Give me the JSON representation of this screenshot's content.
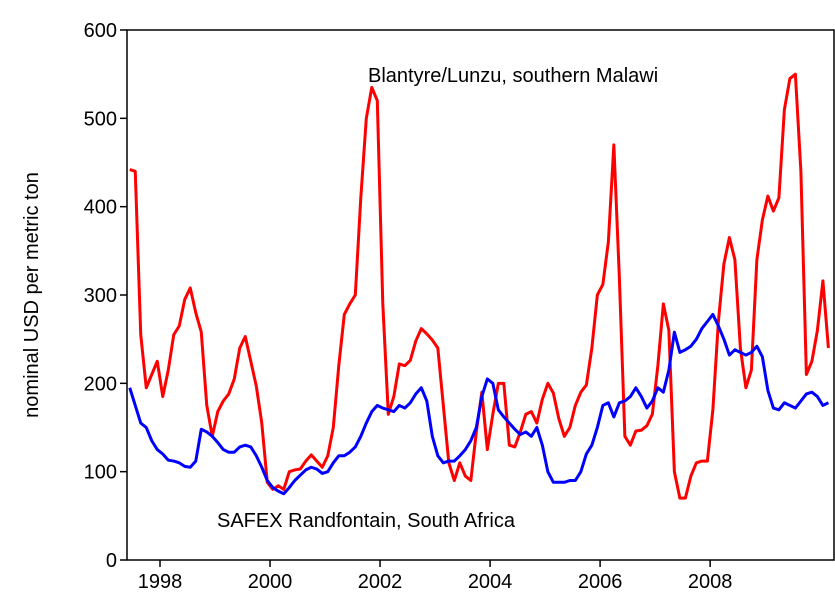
{
  "chart_data": {
    "type": "line",
    "y_label": "nominal USD per metric ton",
    "x": [
      1997.45,
      1997.55,
      1997.65,
      1997.75,
      1997.85,
      1997.95,
      1998.05,
      1998.15,
      1998.25,
      1998.35,
      1998.45,
      1998.55,
      1998.65,
      1998.75,
      1998.85,
      1998.95,
      1999.05,
      1999.15,
      1999.25,
      1999.35,
      1999.45,
      1999.55,
      1999.65,
      1999.75,
      1999.85,
      1999.95,
      2000.05,
      2000.15,
      2000.25,
      2000.35,
      2000.45,
      2000.55,
      2000.65,
      2000.75,
      2000.85,
      2000.95,
      2001.05,
      2001.15,
      2001.25,
      2001.35,
      2001.45,
      2001.55,
      2001.65,
      2001.75,
      2001.85,
      2001.95,
      2002.05,
      2002.15,
      2002.25,
      2002.35,
      2002.45,
      2002.55,
      2002.65,
      2002.75,
      2002.85,
      2002.95,
      2003.05,
      2003.15,
      2003.25,
      2003.35,
      2003.45,
      2003.55,
      2003.65,
      2003.75,
      2003.85,
      2003.95,
      2004.05,
      2004.15,
      2004.25,
      2004.35,
      2004.45,
      2004.55,
      2004.65,
      2004.75,
      2004.85,
      2004.95,
      2005.05,
      2005.15,
      2005.25,
      2005.35,
      2005.45,
      2005.55,
      2005.65,
      2005.75,
      2005.85,
      2005.95,
      2006.05,
      2006.15,
      2006.25,
      2006.35,
      2006.45,
      2006.55,
      2006.65,
      2006.75,
      2006.85,
      2006.95,
      2007.05,
      2007.15,
      2007.25,
      2007.35,
      2007.45,
      2007.55,
      2007.65,
      2007.75,
      2007.85,
      2007.95,
      2008.05,
      2008.15,
      2008.25,
      2008.35,
      2008.45,
      2008.55,
      2008.65,
      2008.75,
      2008.85,
      2008.95,
      2009.05,
      2009.15,
      2009.25,
      2009.35,
      2009.45,
      2009.55,
      2009.65,
      2009.75,
      2009.85,
      2009.95,
      2010.05,
      2010.15
    ],
    "series": [
      {
        "name": "Blantyre/Lunzu, southern Malawi",
        "color": "#ff0000",
        "values": [
          442,
          440,
          255,
          195,
          210,
          225,
          185,
          215,
          255,
          265,
          295,
          308,
          280,
          258,
          175,
          140,
          168,
          180,
          188,
          205,
          240,
          253,
          225,
          197,
          155,
          88,
          80,
          84,
          80,
          100,
          102,
          103,
          112,
          119,
          112,
          105,
          118,
          150,
          220,
          278,
          290,
          300,
          410,
          500,
          535,
          520,
          290,
          165,
          185,
          222,
          220,
          226,
          248,
          262,
          256,
          249,
          240,
          175,
          110,
          90,
          110,
          95,
          90,
          145,
          190,
          125,
          165,
          200,
          200,
          130,
          128,
          145,
          165,
          168,
          155,
          182,
          200,
          189,
          160,
          140,
          150,
          175,
          190,
          198,
          240,
          300,
          312,
          360,
          470,
          320,
          140,
          130,
          146,
          147,
          152,
          165,
          220,
          290,
          260,
          100,
          70,
          70,
          95,
          110,
          112,
          112,
          170,
          270,
          335,
          365,
          340,
          240,
          195,
          215,
          340,
          385,
          412,
          395,
          410,
          510,
          545,
          550,
          440,
          210,
          225,
          260,
          316,
          240
        ]
      },
      {
        "name": "SAFEX Randfontain, South Africa",
        "color": "#0000ff",
        "values": [
          195,
          175,
          155,
          150,
          135,
          125,
          120,
          113,
          112,
          110,
          106,
          105,
          112,
          148,
          145,
          140,
          133,
          125,
          122,
          122,
          128,
          130,
          128,
          118,
          105,
          90,
          82,
          78,
          75,
          82,
          90,
          96,
          102,
          105,
          103,
          98,
          100,
          110,
          118,
          118,
          122,
          128,
          140,
          155,
          168,
          175,
          172,
          170,
          168,
          175,
          172,
          178,
          188,
          195,
          180,
          140,
          118,
          110,
          112,
          112,
          118,
          125,
          135,
          150,
          185,
          205,
          200,
          170,
          162,
          155,
          148,
          142,
          145,
          140,
          150,
          130,
          100,
          88,
          88,
          88,
          90,
          90,
          100,
          120,
          130,
          150,
          175,
          178,
          162,
          178,
          180,
          185,
          195,
          185,
          172,
          180,
          195,
          190,
          215,
          258,
          235,
          238,
          242,
          250,
          262,
          270,
          278,
          265,
          250,
          232,
          238,
          235,
          232,
          235,
          242,
          230,
          192,
          172,
          170,
          178,
          175,
          172,
          180,
          188,
          190,
          185,
          175,
          178
        ]
      }
    ],
    "xlim": [
      1997.4,
      2010.27
    ],
    "xticks": [
      1998,
      2000,
      2002,
      2004,
      2006,
      2008
    ],
    "ylim": [
      0,
      600
    ],
    "yticks": [
      0,
      100,
      200,
      300,
      400,
      500,
      600
    ]
  }
}
